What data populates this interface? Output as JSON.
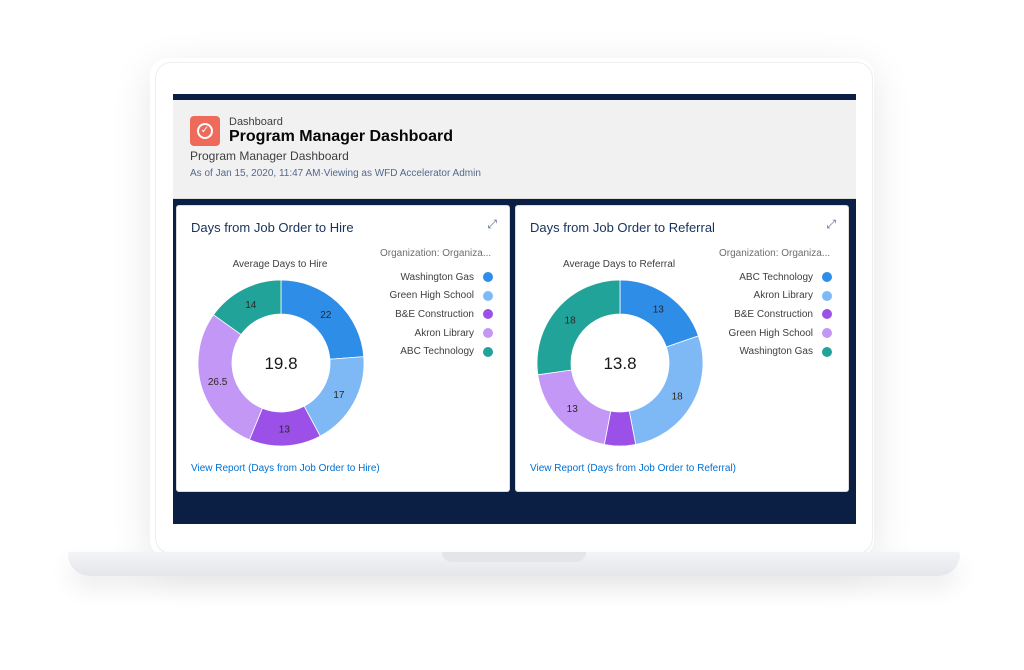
{
  "header": {
    "breadcrumb": "Dashboard",
    "title": "Program Manager Dashboard",
    "subtitle": "Program Manager Dashboard",
    "as_of": "As of Jan 15, 2020, 11:47 AM·Viewing as WFD Accelerator Admin"
  },
  "colors": {
    "navy": "#0b1f45",
    "accent": "#ee6a5b",
    "link": "#0070d2"
  },
  "cards": [
    {
      "title": "Days from Job Order to Hire",
      "chart_subtitle": "Average Days to Hire",
      "legend_header": "Organization: Organiza...",
      "center_value": "19.8",
      "link": "View Report (Days from Job Order to Hire)",
      "expand_icon": "expand-icon"
    },
    {
      "title": "Days from Job Order to Referral",
      "chart_subtitle": "Average Days to Referral",
      "legend_header": "Organization: Organiza...",
      "center_value": "13.8",
      "link": "View Report (Days from Job Order to Referral)",
      "expand_icon": "expand-icon"
    }
  ],
  "chart_data": [
    {
      "type": "pie",
      "title": "Average Days to Hire",
      "categories": [
        "Washington Gas",
        "Green High School",
        "B&E Construction",
        "Akron Library",
        "ABC Technology"
      ],
      "values": [
        22,
        17,
        13,
        26.5,
        14
      ],
      "colors": [
        "#2e8de6",
        "#7eb9f5",
        "#9b51e8",
        "#c397f5",
        "#22a39a"
      ],
      "center_value": 19.8
    },
    {
      "type": "pie",
      "title": "Average Days to Referral",
      "categories": [
        "ABC Technology",
        "Akron Library",
        "B&E Construction",
        "Green High School",
        "Washington Gas"
      ],
      "values": [
        13,
        18,
        4,
        13,
        18
      ],
      "data_labels": [
        "13",
        "18",
        "",
        "13",
        "18"
      ],
      "colors": [
        "#2e8de6",
        "#7eb9f5",
        "#9b51e8",
        "#c397f5",
        "#22a39a"
      ],
      "center_value": 13.8
    }
  ]
}
